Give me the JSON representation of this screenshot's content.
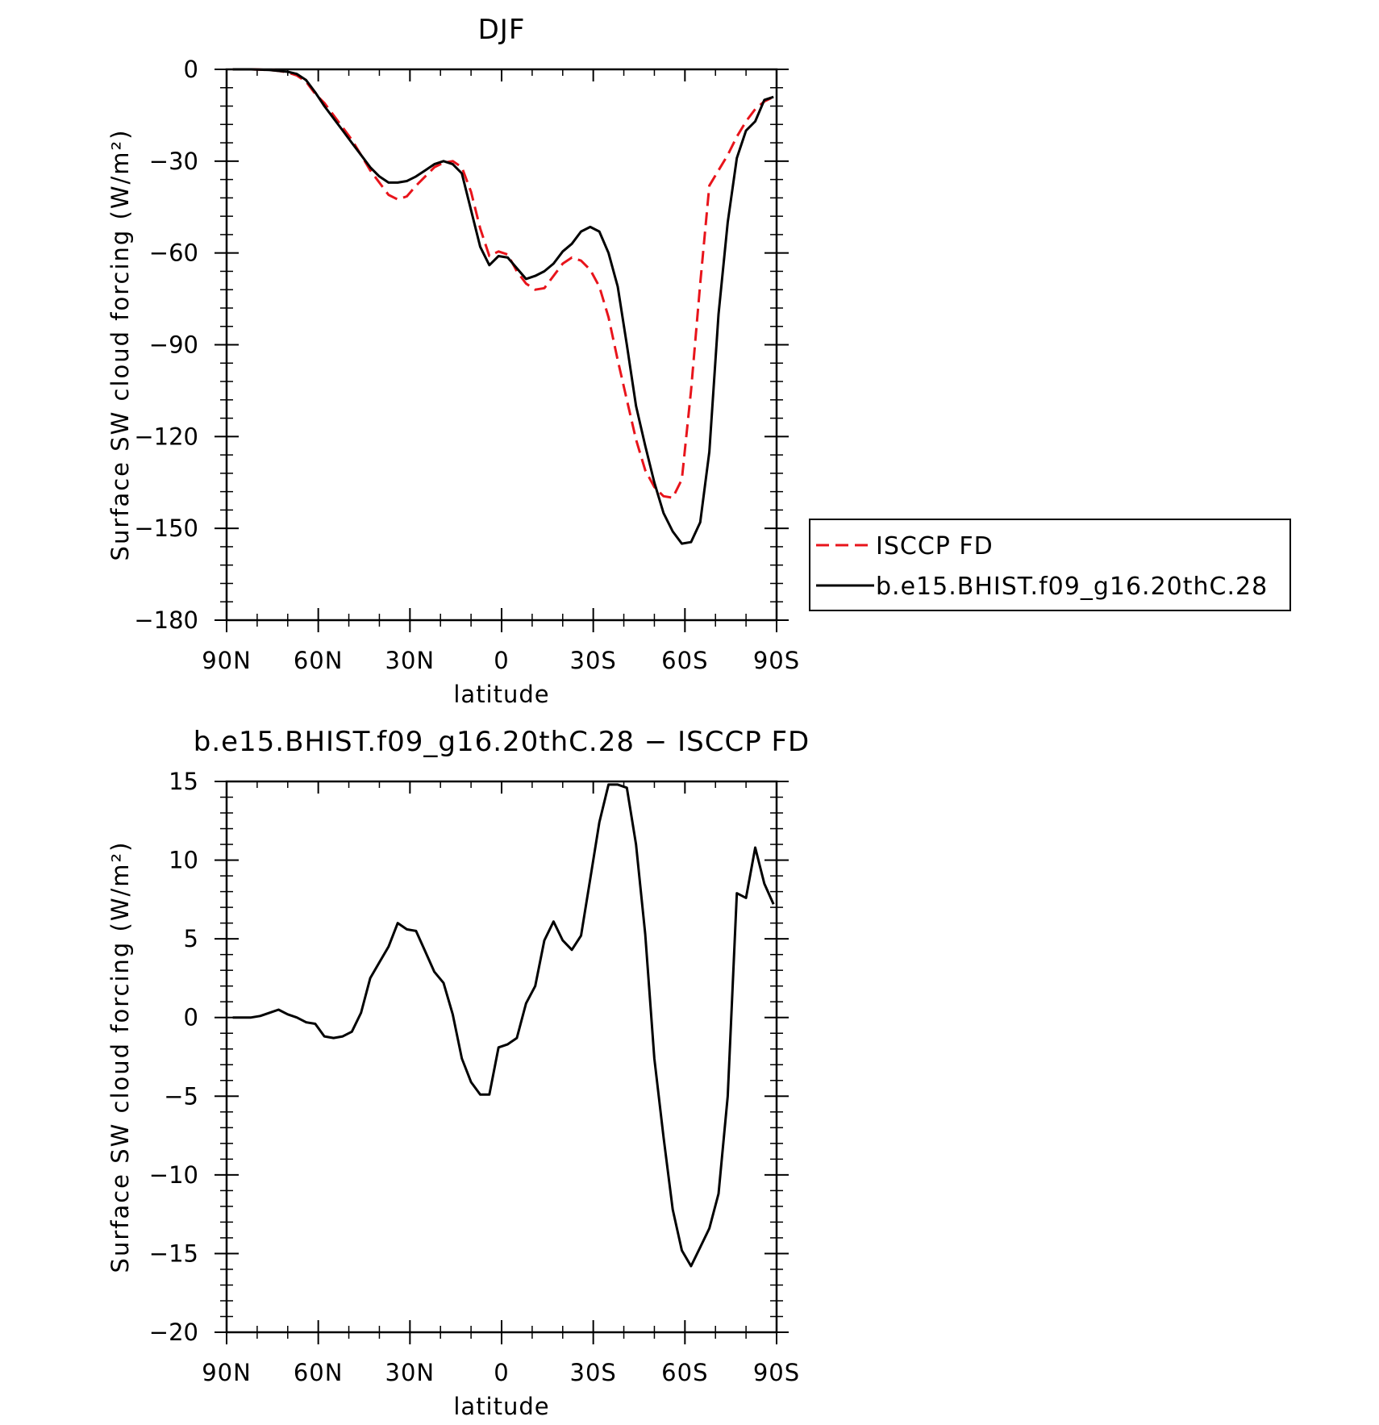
{
  "chart_data": [
    {
      "type": "line",
      "title": "DJF",
      "xlabel": "latitude",
      "ylabel": "Surface SW cloud forcing (W/m²)",
      "xlim": [
        90,
        -90
      ],
      "ylim": [
        -180,
        0
      ],
      "xticks": [
        90,
        60,
        30,
        0,
        -30,
        -60,
        -90
      ],
      "xtick_labels": [
        "90N",
        "60N",
        "30N",
        "0",
        "30S",
        "60S",
        "90S"
      ],
      "yticks": [
        0,
        -30,
        -60,
        -90,
        -120,
        -150,
        -180
      ],
      "ytick_labels": [
        "0",
        "−30",
        "−60",
        "−90",
        "−120",
        "−150",
        "−180"
      ],
      "legend": "right",
      "series": [
        {
          "name": "ISCCP FD",
          "color": "#e8141b",
          "dash": "dashed",
          "x": [
            88,
            85,
            82,
            79,
            76,
            73,
            70,
            67,
            64,
            61,
            58,
            55,
            52,
            49,
            46,
            43,
            40,
            37,
            34,
            31,
            28,
            25,
            22,
            19,
            16,
            13,
            10,
            7,
            4,
            1,
            -2,
            -5,
            -8,
            -11,
            -14,
            -17,
            -20,
            -23,
            -26,
            -29,
            -32,
            -35,
            -38,
            -41,
            -44,
            -47,
            -50,
            -53,
            -56,
            -59,
            -62,
            -65,
            -68,
            -71,
            -74,
            -77,
            -80,
            -83,
            -86,
            -89
          ],
          "y": [
            0,
            0,
            0,
            -0.1,
            -0.2,
            -0.5,
            -1,
            -2,
            -4,
            -8,
            -11,
            -15,
            -19,
            -23,
            -28,
            -33,
            -37,
            -41,
            -42.5,
            -41.5,
            -38,
            -35,
            -32,
            -30.5,
            -30,
            -32,
            -40,
            -52,
            -61,
            -59.5,
            -60.5,
            -66,
            -70,
            -72,
            -71.5,
            -67.5,
            -63.5,
            -61.5,
            -62.5,
            -65.5,
            -71,
            -81,
            -95,
            -108,
            -121,
            -131,
            -136.5,
            -139.5,
            -140,
            -134,
            -105,
            -70,
            -38,
            -33,
            -28,
            -22,
            -17,
            -13,
            -10.5,
            -9
          ]
        },
        {
          "name": "b.e15.BHIST.f09_g16.20thC.28",
          "color": "#000000",
          "dash": "solid",
          "x": [
            88,
            85,
            82,
            79,
            76,
            73,
            70,
            67,
            64,
            61,
            58,
            55,
            52,
            49,
            46,
            43,
            40,
            37,
            34,
            31,
            28,
            25,
            22,
            19,
            16,
            13,
            10,
            7,
            4,
            1,
            -2,
            -5,
            -8,
            -11,
            -14,
            -17,
            -20,
            -23,
            -26,
            -29,
            -32,
            -35,
            -38,
            -41,
            -44,
            -47,
            -50,
            -53,
            -56,
            -59,
            -62,
            -65,
            -68,
            -71,
            -74,
            -77,
            -80,
            -83,
            -86,
            -89
          ],
          "y": [
            0,
            0,
            0,
            -0.1,
            -0.2,
            -0.5,
            -0.8,
            -1.5,
            -3.5,
            -7.5,
            -12,
            -16,
            -20,
            -24,
            -28,
            -32,
            -35,
            -37,
            -37,
            -36.5,
            -35,
            -33,
            -31,
            -30,
            -31,
            -34,
            -46,
            -58,
            -64,
            -61,
            -61.5,
            -65,
            -68.5,
            -67.5,
            -66,
            -63.5,
            -59.5,
            -57,
            -53,
            -51.5,
            -53,
            -60,
            -71,
            -90,
            -110,
            -123,
            -135,
            -145,
            -151,
            -155,
            -154.5,
            -148,
            -125,
            -80,
            -50,
            -29,
            -20,
            -17,
            -10,
            -9
          ]
        }
      ]
    },
    {
      "type": "line",
      "title": "b.e15.BHIST.f09_g16.20thC.28 − ISCCP FD",
      "xlabel": "latitude",
      "ylabel": "Surface SW cloud forcing (W/m²)",
      "xlim": [
        90,
        -90
      ],
      "ylim": [
        -20,
        15
      ],
      "xticks": [
        90,
        60,
        30,
        0,
        -30,
        -60,
        -90
      ],
      "xtick_labels": [
        "90N",
        "60N",
        "30N",
        "0",
        "30S",
        "60S",
        "90S"
      ],
      "yticks": [
        15,
        10,
        5,
        0,
        -5,
        -10,
        -15,
        -20
      ],
      "ytick_labels": [
        "15",
        "10",
        "5",
        "0",
        "−5",
        "−10",
        "−15",
        "−20"
      ],
      "series": [
        {
          "color": "#000000",
          "dash": "solid",
          "x": [
            88,
            85,
            82,
            79,
            76,
            73,
            70,
            67,
            64,
            61,
            58,
            55,
            52,
            49,
            46,
            43,
            40,
            37,
            34,
            31,
            28,
            25,
            22,
            19,
            16,
            13,
            10,
            7,
            4,
            1,
            -2,
            -5,
            -8,
            -11,
            -14,
            -17,
            -20,
            -23,
            -26,
            -29,
            -32,
            -35,
            -38,
            -41,
            -44,
            -47,
            -50,
            -53,
            -56,
            -59,
            -62,
            -65,
            -68,
            -71,
            -74,
            -77,
            -80,
            -83,
            -86,
            -89
          ],
          "y": [
            0,
            0,
            0,
            0.1,
            0.3,
            0.5,
            0.2,
            0,
            -0.3,
            -0.4,
            -1.2,
            -1.3,
            -1.2,
            -0.9,
            0.3,
            2.5,
            3.5,
            4.5,
            6,
            5.6,
            5.5,
            4.2,
            2.9,
            2.2,
            0.2,
            -2.6,
            -4.1,
            -4.9,
            -4.9,
            -1.9,
            -1.7,
            -1.3,
            0.9,
            2,
            4.9,
            6.1,
            4.9,
            4.3,
            5.2,
            8.8,
            12.4,
            14.8,
            14.8,
            14.6,
            11,
            5.3,
            -2.6,
            -7.6,
            -12.2,
            -14.8,
            -15.8,
            -14.6,
            -13.4,
            -11.2,
            -5,
            7.9,
            7.6,
            10.8,
            8.5,
            7.2
          ]
        }
      ]
    }
  ]
}
